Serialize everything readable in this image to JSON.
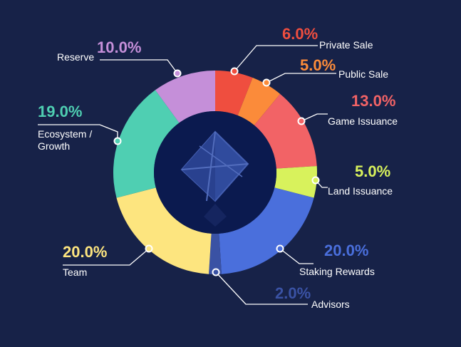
{
  "chart_data": {
    "type": "pie",
    "variant": "donut",
    "title": "",
    "slices": [
      {
        "label": "Private Sale",
        "value_text": "6.0%",
        "value": 6.0,
        "color": "#ef4e3f"
      },
      {
        "label": "Public Sale",
        "value_text": "5.0%",
        "value": 5.0,
        "color": "#fb8b3a"
      },
      {
        "label": "Game Issuance",
        "value_text": "13.0%",
        "value": 13.0,
        "color": "#f26366"
      },
      {
        "label": "Land Issuance",
        "value_text": "5.0%",
        "value": 5.0,
        "color": "#d8f25c"
      },
      {
        "label": "Staking Rewards",
        "value_text": "20.0%",
        "value": 20.0,
        "color": "#4a6fdc"
      },
      {
        "label": "Advisors",
        "value_text": "2.0%",
        "value": 2.0,
        "color": "#3a52a4"
      },
      {
        "label": "Team",
        "value_text": "20.0%",
        "value": 20.0,
        "color": "#fde57f"
      },
      {
        "label": "Ecosystem / Growth",
        "value_text": "19.0%",
        "value": 19.0,
        "color": "#4fcfb2"
      },
      {
        "label": "Reserve",
        "value_text": "10.0%",
        "value": 10.0,
        "color": "#c58fd9"
      }
    ],
    "legend": "none",
    "background_color": "#172248",
    "center_icon": "octahedron-logo-icon"
  }
}
